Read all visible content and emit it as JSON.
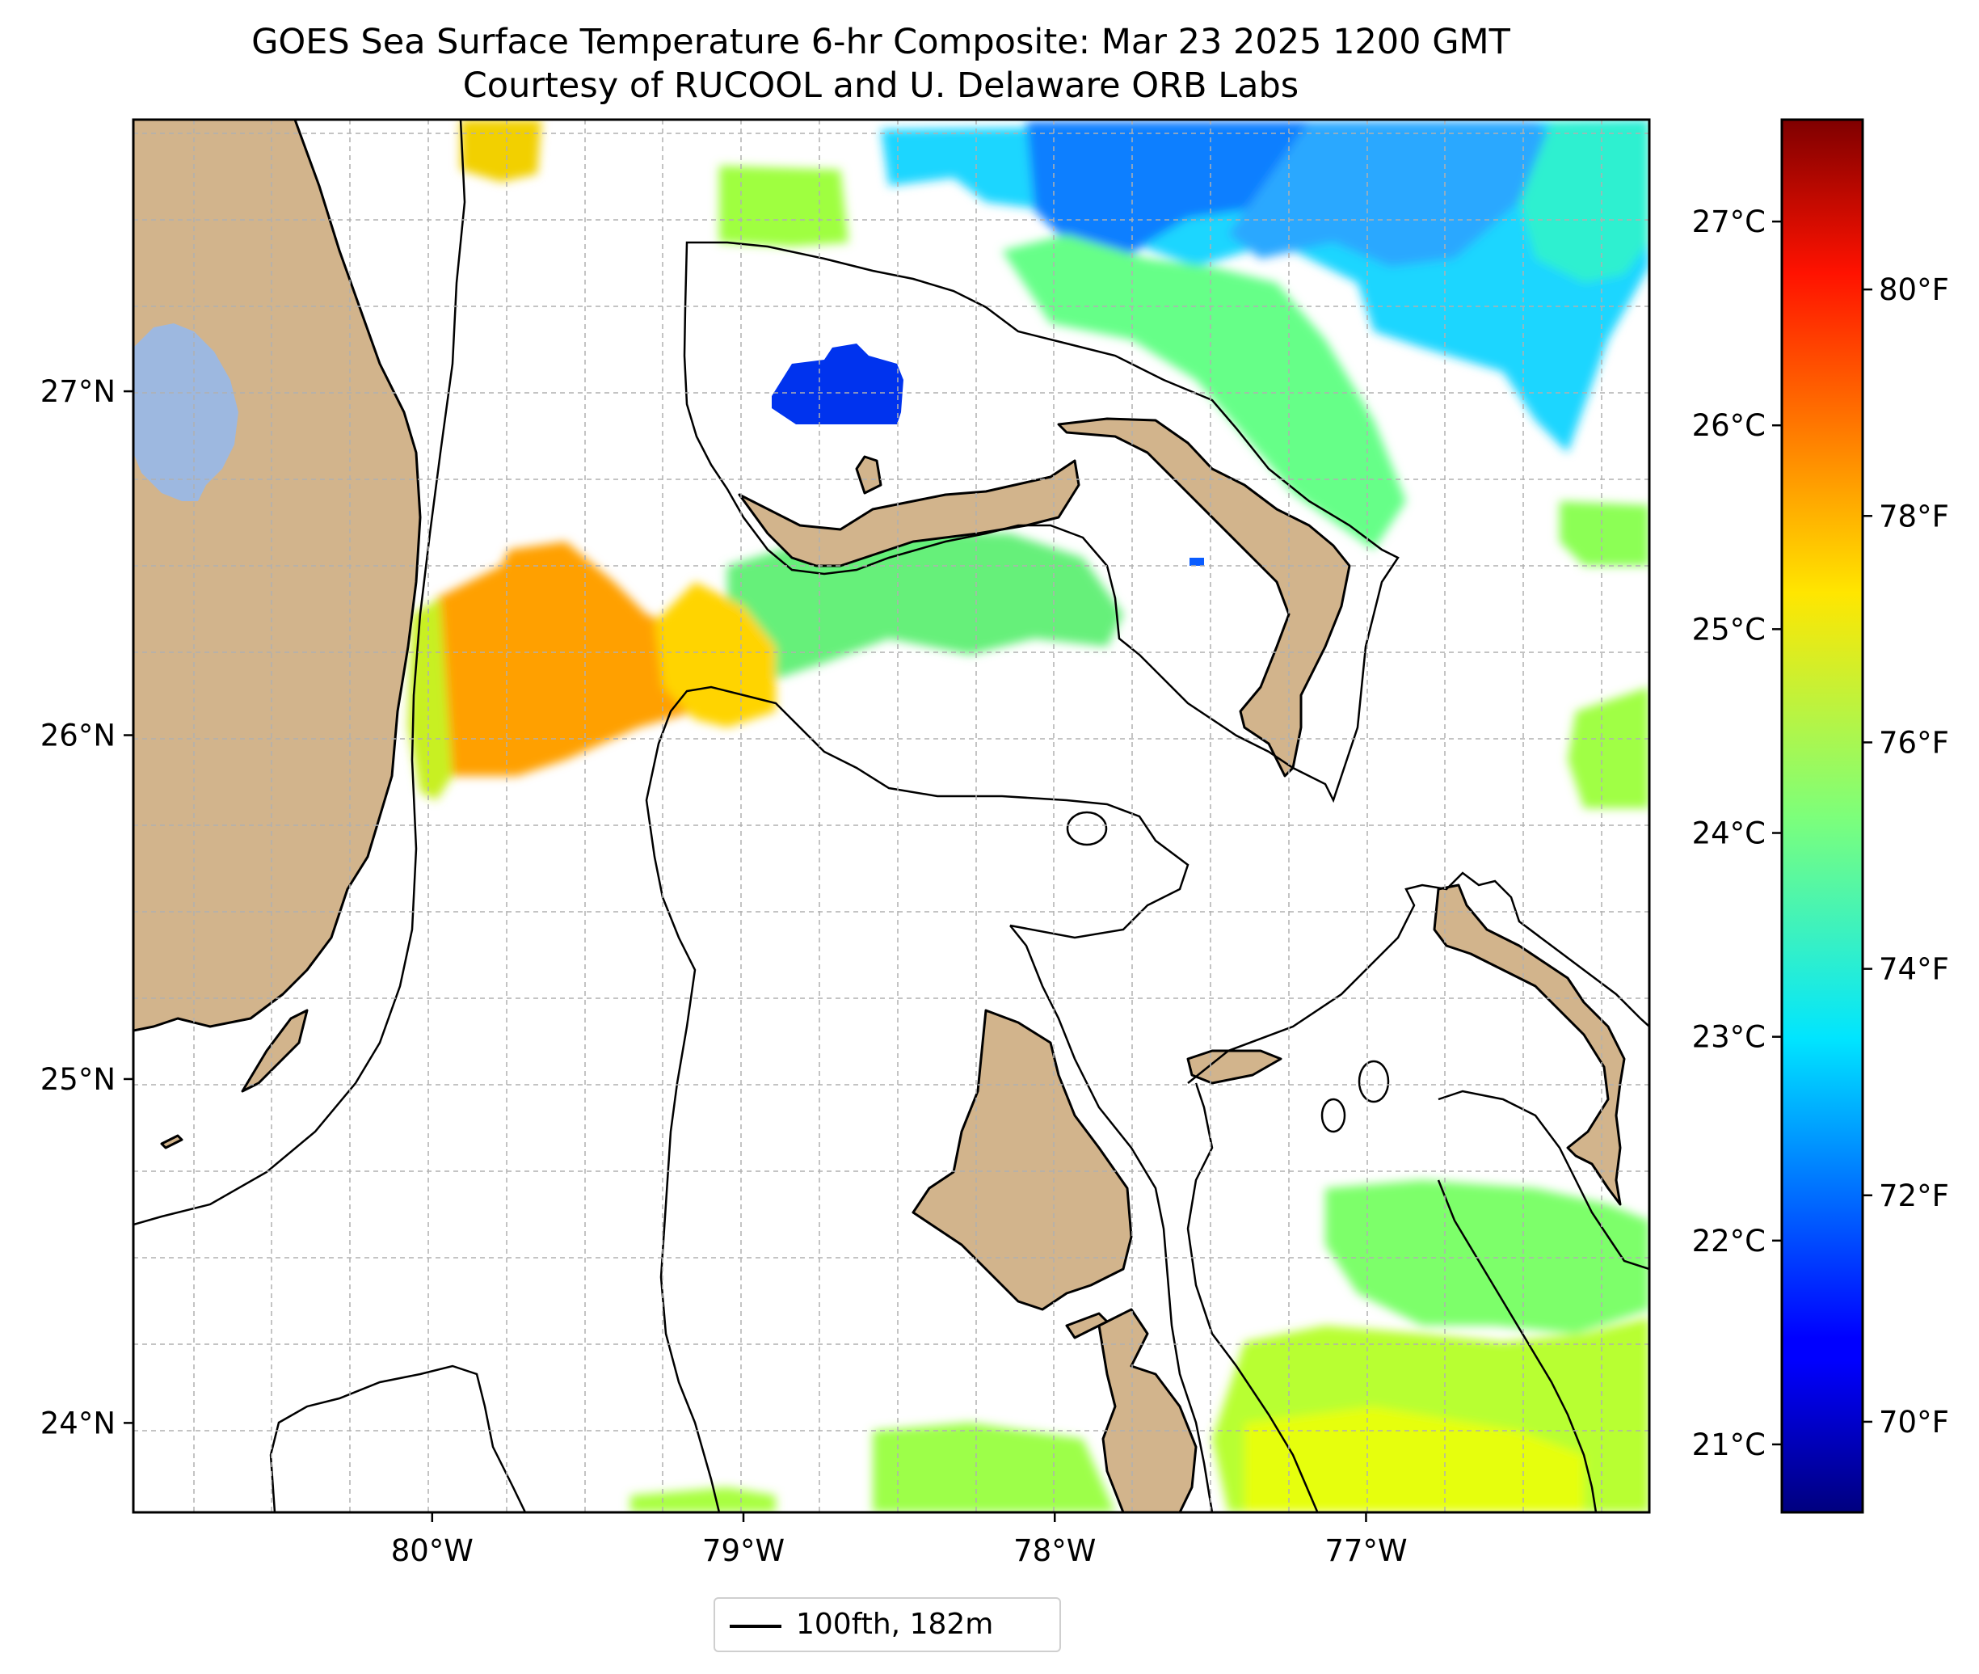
{
  "title": {
    "line1": "GOES Sea Surface Temperature 6-hr Composite: Mar 23 2025 1200 GMT",
    "line2": "Courtesy of RUCOOL and U. Delaware ORB Labs"
  },
  "map": {
    "lon_range": [
      -80.96,
      -76.09
    ],
    "lat_range": [
      23.74,
      27.79
    ],
    "longitude_ticks": [
      {
        "value": -80,
        "label": "80°W"
      },
      {
        "value": -79,
        "label": "79°W"
      },
      {
        "value": -78,
        "label": "78°W"
      },
      {
        "value": -77,
        "label": "77°W"
      }
    ],
    "latitude_ticks": [
      {
        "value": 27,
        "label": "27°N"
      },
      {
        "value": 26,
        "label": "26°N"
      },
      {
        "value": 25,
        "label": "25°N"
      },
      {
        "value": 24,
        "label": "24°N"
      }
    ],
    "gridlines": true,
    "land_color": "#d2b48c",
    "lake_color": "#9db8e0",
    "contour_color": "#000000"
  },
  "colorbar": {
    "colormap": "jet",
    "range_f": [
      69.2,
      81.5
    ],
    "fahrenheit_ticks": [
      {
        "value": 70,
        "label": "70°F"
      },
      {
        "value": 72,
        "label": "72°F"
      },
      {
        "value": 74,
        "label": "74°F"
      },
      {
        "value": 76,
        "label": "76°F"
      },
      {
        "value": 78,
        "label": "78°F"
      },
      {
        "value": 80,
        "label": "80°F"
      }
    ],
    "celsius_ticks": [
      {
        "value": 21,
        "label": "21°C"
      },
      {
        "value": 22,
        "label": "22°C"
      },
      {
        "value": 23,
        "label": "23°C"
      },
      {
        "value": 24,
        "label": "24°C"
      },
      {
        "value": 25,
        "label": "25°C"
      },
      {
        "value": 26,
        "label": "26°C"
      },
      {
        "value": 27,
        "label": "27°C"
      }
    ]
  },
  "legend": {
    "label": "100fth, 182m",
    "placement": "bottom-center"
  }
}
